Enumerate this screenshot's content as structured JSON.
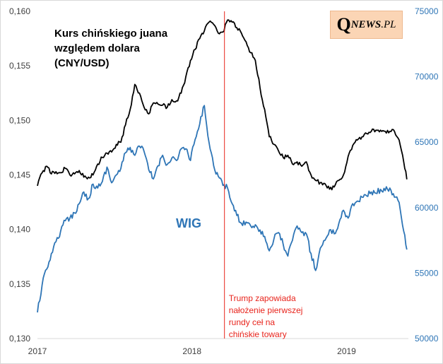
{
  "logo": {
    "q": "Q",
    "rest": "NEWS",
    "dot_tld": ".PL"
  },
  "chart_data": {
    "type": "line",
    "title_lines": [
      "Kurs chińskiego juana",
      "względem dolara",
      "(CNY/USD)"
    ],
    "x_ticks": [
      "2017",
      "2018",
      "2019"
    ],
    "x_range": [
      2017.0,
      2019.4
    ],
    "y_left": {
      "range": [
        0.13,
        0.16
      ],
      "ticks": [
        "0,130",
        "0,135",
        "0,140",
        "0,145",
        "0,150",
        "0,155",
        "0,160"
      ],
      "tick_values": [
        0.13,
        0.135,
        0.14,
        0.145,
        0.15,
        0.155,
        0.16
      ]
    },
    "y_right": {
      "range": [
        50000,
        75000
      ],
      "ticks": [
        "50000",
        "55000",
        "60000",
        "65000",
        "70000",
        "75000"
      ],
      "tick_values": [
        50000,
        55000,
        60000,
        65000,
        70000,
        75000
      ]
    },
    "colors": {
      "cny": "#000000",
      "wig": "#2e75b6",
      "event": "#e8241c",
      "axis_right": "#2e75b6"
    },
    "series": [
      {
        "name": "WIG",
        "axis": "right",
        "x": [
          2017.0,
          2017.03,
          2017.06,
          2017.09,
          2017.12,
          2017.15,
          2017.18,
          2017.21,
          2017.24,
          2017.27,
          2017.3,
          2017.33,
          2017.36,
          2017.39,
          2017.42,
          2017.45,
          2017.48,
          2017.51,
          2017.54,
          2017.57,
          2017.6,
          2017.63,
          2017.66,
          2017.69,
          2017.72,
          2017.75,
          2017.78,
          2017.81,
          2017.84,
          2017.87,
          2017.9,
          2017.93,
          2017.96,
          2017.99,
          2018.02,
          2018.05,
          2018.08,
          2018.11,
          2018.14,
          2018.17,
          2018.2,
          2018.23,
          2018.26,
          2018.29,
          2018.32,
          2018.35,
          2018.38,
          2018.41,
          2018.44,
          2018.47,
          2018.5,
          2018.53,
          2018.56,
          2018.59,
          2018.62,
          2018.65,
          2018.68,
          2018.71,
          2018.74,
          2018.77,
          2018.8,
          2018.83,
          2018.86,
          2018.89,
          2018.92,
          2018.95,
          2018.98,
          2019.01,
          2019.04,
          2019.07,
          2019.1,
          2019.13,
          2019.16,
          2019.19,
          2019.22,
          2019.25,
          2019.28,
          2019.31,
          2019.34,
          2019.37,
          2019.39
        ],
        "values": [
          52000,
          54100,
          55300,
          56500,
          57400,
          58200,
          59000,
          59200,
          59600,
          60300,
          61200,
          60700,
          61800,
          61500,
          62000,
          63100,
          61900,
          62500,
          63000,
          64200,
          64600,
          64000,
          64700,
          64300,
          62900,
          62200,
          63200,
          64000,
          63300,
          63800,
          63600,
          64500,
          64500,
          63600,
          65200,
          66400,
          67800,
          65000,
          63200,
          62400,
          61700,
          61500,
          60300,
          59400,
          58800,
          58900,
          58600,
          58700,
          58300,
          57800,
          56700,
          57600,
          58100,
          57200,
          56300,
          57500,
          58600,
          58100,
          58000,
          56500,
          55200,
          56900,
          57500,
          58300,
          58000,
          58800,
          59800,
          59200,
          60300,
          60500,
          60800,
          60900,
          61200,
          61100,
          61400,
          61300,
          61500,
          60800,
          60400,
          58200,
          56800
        ]
      },
      {
        "name": "CNY/USD",
        "axis": "left",
        "x": [
          2017.0,
          2017.03,
          2017.06,
          2017.09,
          2017.12,
          2017.15,
          2017.18,
          2017.21,
          2017.24,
          2017.27,
          2017.3,
          2017.33,
          2017.36,
          2017.39,
          2017.42,
          2017.45,
          2017.48,
          2017.51,
          2017.54,
          2017.57,
          2017.6,
          2017.63,
          2017.66,
          2017.69,
          2017.72,
          2017.75,
          2017.78,
          2017.81,
          2017.84,
          2017.87,
          2017.9,
          2017.93,
          2017.96,
          2017.99,
          2018.02,
          2018.05,
          2018.08,
          2018.11,
          2018.14,
          2018.17,
          2018.2,
          2018.23,
          2018.26,
          2018.29,
          2018.32,
          2018.35,
          2018.38,
          2018.41,
          2018.44,
          2018.47,
          2018.5,
          2018.53,
          2018.56,
          2018.59,
          2018.62,
          2018.65,
          2018.68,
          2018.71,
          2018.74,
          2018.77,
          2018.8,
          2018.83,
          2018.86,
          2018.89,
          2018.92,
          2018.95,
          2018.98,
          2019.01,
          2019.04,
          2019.07,
          2019.1,
          2019.13,
          2019.16,
          2019.19,
          2019.22,
          2019.25,
          2019.28,
          2019.31,
          2019.34,
          2019.37,
          2019.39
        ],
        "values": [
          0.144,
          0.1452,
          0.1458,
          0.1451,
          0.1453,
          0.1452,
          0.1456,
          0.145,
          0.1451,
          0.1454,
          0.1448,
          0.1448,
          0.145,
          0.146,
          0.1466,
          0.147,
          0.1471,
          0.1478,
          0.148,
          0.1496,
          0.151,
          0.1533,
          0.1525,
          0.1512,
          0.1506,
          0.1516,
          0.1515,
          0.1514,
          0.1512,
          0.1519,
          0.1518,
          0.1525,
          0.154,
          0.1555,
          0.1565,
          0.1575,
          0.1582,
          0.159,
          0.1588,
          0.158,
          0.1581,
          0.1592,
          0.159,
          0.1585,
          0.158,
          0.1572,
          0.1562,
          0.1555,
          0.153,
          0.151,
          0.1485,
          0.1478,
          0.1472,
          0.1466,
          0.1468,
          0.146,
          0.1462,
          0.1458,
          0.1462,
          0.145,
          0.1445,
          0.1443,
          0.1442,
          0.1437,
          0.1439,
          0.1445,
          0.145,
          0.1467,
          0.1477,
          0.1482,
          0.1485,
          0.1488,
          0.149,
          0.1491,
          0.1491,
          0.149,
          0.149,
          0.149,
          0.1482,
          0.1462,
          0.1446
        ]
      }
    ],
    "series_label": "WIG",
    "event": {
      "x": 2018.21,
      "label_lines": [
        "Trump zapowiada",
        "nałożenie pierwszej",
        "rundy ceł na",
        "chińskie towary"
      ]
    },
    "grid": false,
    "legend": "none"
  }
}
